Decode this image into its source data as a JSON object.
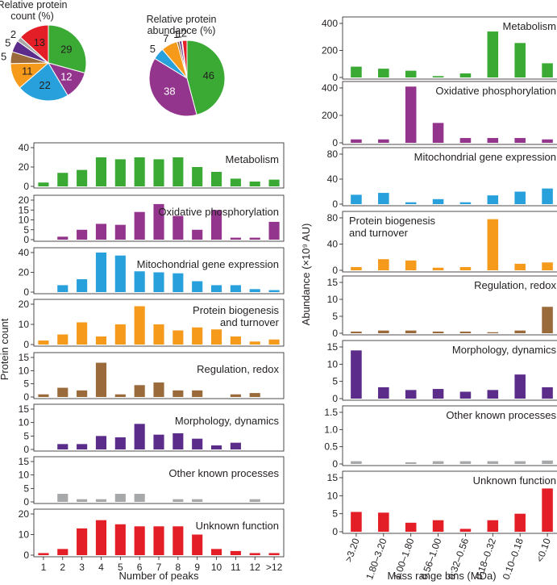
{
  "colors": {
    "metabolism": "#3aaa35",
    "oxphos": "#93358d",
    "gene_expression": "#27a0dc",
    "biogenesis": "#f59a1b",
    "regulation": "#9a6a3a",
    "morphology": "#5b2c8a",
    "other": "#a7a8aa",
    "unknown": "#e41e26"
  },
  "chart_data": [
    {
      "type": "pie",
      "id": "pie-count",
      "title": "Relative protein count (%)",
      "title_lines": [
        "Relative protein",
        "count (%)"
      ],
      "slices": [
        {
          "name": "Metabolism",
          "value": 29,
          "color_key": "metabolism",
          "label": "29"
        },
        {
          "name": "Oxidative phosphorylation",
          "value": 12,
          "color_key": "oxphos",
          "label": "12"
        },
        {
          "name": "Mitochondrial gene expression",
          "value": 22,
          "color_key": "gene_expression",
          "label": "22"
        },
        {
          "name": "Protein biogenesis and turnover",
          "value": 11,
          "color_key": "biogenesis",
          "label": "11"
        },
        {
          "name": "Regulation, redox",
          "value": 5,
          "color_key": "regulation",
          "label": "5"
        },
        {
          "name": "Morphology, dynamics",
          "value": 5,
          "color_key": "morphology",
          "label": "5"
        },
        {
          "name": "Other known processes",
          "value": 2,
          "color_key": "other",
          "label": "2"
        },
        {
          "name": "Unknown function",
          "value": 13,
          "color_key": "unknown",
          "label": "13"
        }
      ]
    },
    {
      "type": "pie",
      "id": "pie-abundance",
      "title": "Relative protein abundance (%)",
      "title_lines": [
        "Relative protein",
        "abundance (%)"
      ],
      "slices": [
        {
          "name": "Metabolism",
          "value": 46,
          "color_key": "metabolism",
          "label": "46"
        },
        {
          "name": "Oxidative phosphorylation",
          "value": 38,
          "color_key": "oxphos",
          "label": "38"
        },
        {
          "name": "Mitochondrial gene expression",
          "value": 5,
          "color_key": "gene_expression",
          "label": "5"
        },
        {
          "name": "Protein biogenesis and turnover",
          "value": 7,
          "color_key": "biogenesis",
          "label": "7"
        },
        {
          "name": "Regulation, redox",
          "value": 1,
          "color_key": "regulation",
          "label": "1"
        },
        {
          "name": "Morphology, dynamics",
          "value": 1,
          "color_key": "morphology",
          "label": "1"
        },
        {
          "name": "Other known processes",
          "value": 0.3,
          "color_key": "other",
          "label": ""
        },
        {
          "name": "Unknown function",
          "value": 2,
          "color_key": "unknown",
          "label": "2"
        }
      ]
    },
    {
      "type": "bar",
      "id": "count-histograms",
      "xlabel": "Number of peaks",
      "ylabel": "Protein count",
      "categories": [
        "1",
        "2",
        "3",
        "4",
        "5",
        "6",
        "7",
        "8",
        "9",
        "10",
        "11",
        "12",
        ">12"
      ],
      "series": [
        {
          "name": "Metabolism",
          "title_lines": [
            "Metabolism"
          ],
          "color_key": "metabolism",
          "ylim": [
            0,
            40
          ],
          "yticks": [
            0,
            20,
            40
          ],
          "values": [
            4,
            14,
            17,
            30,
            28,
            30,
            28,
            30,
            20,
            15,
            8,
            5,
            7
          ]
        },
        {
          "name": "Oxidative phosphorylation",
          "title_lines": [
            "Oxidative phosphorylation"
          ],
          "color_key": "oxphos",
          "ylim": [
            0,
            20
          ],
          "yticks": [
            0,
            5,
            10,
            15,
            20
          ],
          "values": [
            0,
            1.5,
            5,
            8,
            7.5,
            14,
            18,
            12,
            5,
            15,
            1,
            1,
            9
          ]
        },
        {
          "name": "Mitochondrial gene expression",
          "title_lines": [
            "Mitochondrial gene expression"
          ],
          "color_key": "gene_expression",
          "ylim": [
            0,
            40
          ],
          "yticks": [
            0,
            20,
            40
          ],
          "values": [
            0,
            7,
            13,
            40,
            37,
            21,
            20,
            19,
            11,
            7,
            7,
            3,
            2
          ]
        },
        {
          "name": "Protein biogenesis and turnover",
          "title_lines": [
            "Protein biogenesis",
            "and turnover"
          ],
          "color_key": "biogenesis",
          "ylim": [
            0,
            20
          ],
          "yticks": [
            0,
            10,
            20
          ],
          "values": [
            2,
            5,
            11,
            4,
            10,
            19,
            10,
            7,
            8.5,
            7.5,
            4,
            1.5,
            2.5
          ]
        },
        {
          "name": "Regulation, redox",
          "title_lines": [
            "Regulation, redox"
          ],
          "color_key": "regulation",
          "ylim": [
            0,
            15
          ],
          "yticks": [
            0,
            5,
            10,
            15
          ],
          "values": [
            1,
            3.5,
            2.5,
            13,
            1,
            4.5,
            5.5,
            2.5,
            2.5,
            0,
            1,
            1.5,
            0
          ]
        },
        {
          "name": "Morphology, dynamics",
          "title_lines": [
            "Morphology, dynamics"
          ],
          "color_key": "morphology",
          "ylim": [
            0,
            15
          ],
          "yticks": [
            0,
            5,
            10,
            15
          ],
          "values": [
            0,
            2,
            2,
            5,
            4.5,
            9.5,
            5.5,
            6,
            4,
            1.5,
            2.5,
            0,
            0
          ]
        },
        {
          "name": "Other known processes",
          "title_lines": [
            "Other known processes"
          ],
          "color_key": "other",
          "ylim": [
            0,
            15
          ],
          "yticks": [
            0,
            5,
            10,
            15
          ],
          "values": [
            0,
            3,
            1,
            1,
            3,
            3,
            0,
            1,
            1,
            0,
            0,
            1,
            0
          ]
        },
        {
          "name": "Unknown function",
          "title_lines": [
            "Unknown function"
          ],
          "color_key": "unknown",
          "ylim": [
            0,
            20
          ],
          "yticks": [
            0,
            10,
            20
          ],
          "values": [
            1,
            3,
            13,
            17,
            15,
            14,
            14,
            14,
            10,
            3,
            2,
            1,
            1
          ]
        }
      ]
    },
    {
      "type": "bar",
      "id": "abundance-histograms",
      "xlabel": "Mass range bins (MDa)",
      "ylabel": "Abundance (×10⁹ AU)",
      "categories": [
        ">3.20",
        "1.80–3.20",
        "1.00–1.80",
        "0.56–1.00",
        "0.32–0.56",
        "0.18–0.32",
        "0.10–0.18",
        "<0.10"
      ],
      "series": [
        {
          "name": "Metabolism",
          "title_lines": [
            "Metabolism"
          ],
          "color_key": "metabolism",
          "ylim": [
            0,
            400
          ],
          "yticks": [
            0,
            200,
            400
          ],
          "values": [
            80,
            65,
            50,
            10,
            30,
            340,
            255,
            105
          ]
        },
        {
          "name": "Oxidative phosphorylation",
          "title_lines": [
            "Oxidative phosphorylation"
          ],
          "color_key": "oxphos",
          "ylim": [
            0,
            400
          ],
          "yticks": [
            0,
            200,
            400
          ],
          "values": [
            25,
            25,
            410,
            145,
            35,
            35,
            35,
            25
          ]
        },
        {
          "name": "Mitochondrial gene expression",
          "title_lines": [
            "Mitochondrial gene expression"
          ],
          "color_key": "gene_expression",
          "ylim": [
            0,
            80
          ],
          "yticks": [
            0,
            40,
            80
          ],
          "values": [
            15,
            18,
            3,
            8,
            3,
            14,
            20,
            25
          ]
        },
        {
          "name": "Protein biogenesis and turnover",
          "title_lines": [
            "Protein biogenesis",
            "and turnover"
          ],
          "color_key": "biogenesis",
          "ylim": [
            0,
            80
          ],
          "yticks": [
            0,
            40,
            80
          ],
          "values": [
            5,
            17,
            15,
            4,
            5,
            78,
            10,
            12
          ]
        },
        {
          "name": "Regulation, redox",
          "title_lines": [
            "Regulation, redox"
          ],
          "color_key": "regulation",
          "ylim": [
            0,
            15
          ],
          "yticks": [
            0,
            5,
            10,
            15
          ],
          "values": [
            0.5,
            0.8,
            0.8,
            0.5,
            0.5,
            0.3,
            0.8,
            7.8
          ]
        },
        {
          "name": "Morphology, dynamics",
          "title_lines": [
            "Morphology, dynamics"
          ],
          "color_key": "morphology",
          "ylim": [
            0,
            15
          ],
          "yticks": [
            0,
            5,
            10,
            15
          ],
          "values": [
            14,
            3.3,
            2.5,
            2.8,
            2,
            2.5,
            7,
            3.3
          ]
        },
        {
          "name": "Other known processes",
          "title_lines": [
            "Other known processes"
          ],
          "color_key": "other",
          "ylim": [
            0,
            1.5
          ],
          "yticks": [
            0,
            0.5,
            1.0,
            1.5
          ],
          "ytick_labels": [
            "0",
            "0.5",
            "1.0",
            "1.5"
          ],
          "values": [
            0.08,
            0,
            0.05,
            0.08,
            0.08,
            0.08,
            0.08,
            0.1
          ]
        },
        {
          "name": "Unknown function",
          "title_lines": [
            "Unknown function"
          ],
          "color_key": "unknown",
          "ylim": [
            0,
            15
          ],
          "yticks": [
            0,
            5,
            10,
            15
          ],
          "values": [
            5.5,
            5.3,
            2.5,
            3.2,
            0.8,
            3.2,
            5,
            12
          ]
        }
      ]
    }
  ]
}
